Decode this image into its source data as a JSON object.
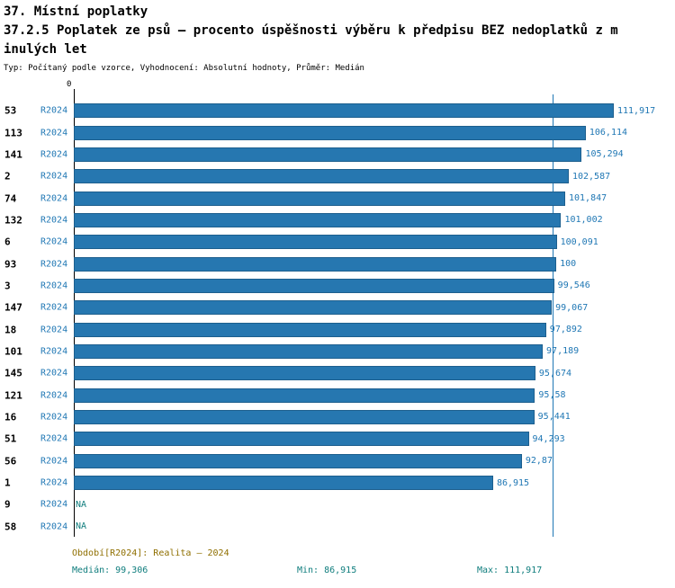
{
  "header": {
    "title_line1": "37. Místní poplatky",
    "title_line2": "37.2.5 Poplatek ze psů – procento úspěšnosti výběru k předpisu BEZ nedoplatků z m",
    "title_line3": "inulých let",
    "subtitle": "Typ: Počítaný podle vzorce, Vyhodnocení: Absolutní hodnoty, Průměr: Medián"
  },
  "axis": {
    "origin_label": "0"
  },
  "colors": {
    "bar": "#2677b0",
    "bar_border": "#1d5f8e",
    "blue_text": "#1f77b4",
    "teal_text": "#0f7d7d",
    "olive_text": "#8f6f00",
    "median_line": "#1f77b4"
  },
  "chart_data": {
    "type": "bar",
    "orientation": "horizontal",
    "period": "R2024",
    "categories": [
      "53",
      "113",
      "141",
      "2",
      "74",
      "132",
      "6",
      "93",
      "3",
      "147",
      "18",
      "101",
      "145",
      "121",
      "16",
      "51",
      "56",
      "1",
      "9",
      "58"
    ],
    "values": [
      111.917,
      106.114,
      105.294,
      102.587,
      101.847,
      101.002,
      100.091,
      100,
      99.546,
      99.067,
      97.892,
      97.189,
      95.674,
      95.58,
      95.441,
      94.293,
      92.87,
      86.915,
      null,
      null
    ],
    "value_labels": [
      "111,917",
      "106,114",
      "105,294",
      "102,587",
      "101,847",
      "101,002",
      "100,091",
      "100",
      "99,546",
      "99,067",
      "97,892",
      "97,189",
      "95,674",
      "95,58",
      "95,441",
      "94,293",
      "92,87",
      "86,915",
      "NA",
      "NA"
    ],
    "xlim": [
      0,
      111.917
    ],
    "median": 99.306,
    "min": 86.915,
    "max": 111.917,
    "legend_position": "bottom",
    "grid": false
  },
  "footer": {
    "period_line": "Období[R2024]: Realita – 2024",
    "median_label": "Medián: 99,306",
    "min_label": "Min: 86,915",
    "max_label": "Max: 111,917"
  }
}
